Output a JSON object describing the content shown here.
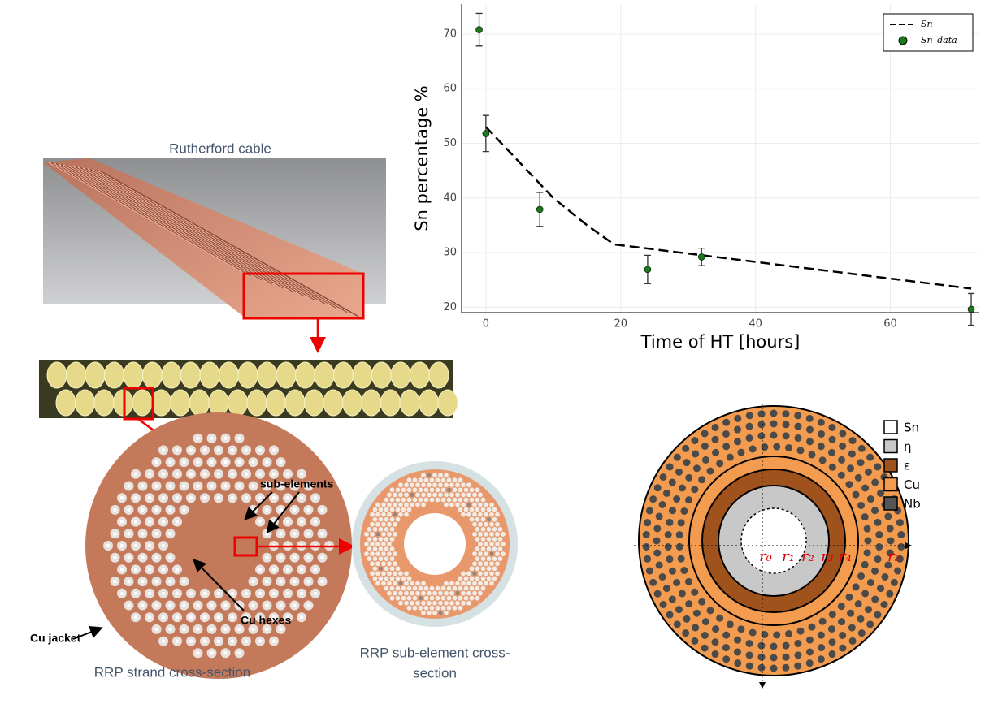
{
  "chart_data": {
    "type": "scatter-line",
    "x_label": "Time of HT [hours]",
    "y_label": "Sn percentage %",
    "xlim": [
      -3.6,
      73.2
    ],
    "ylim": [
      19,
      75.5
    ],
    "xticks": [
      0,
      20,
      40,
      60
    ],
    "yticks": [
      20,
      30,
      40,
      50,
      60,
      70
    ],
    "grid": true,
    "legend": "upper right",
    "series": [
      {
        "name": "Sn",
        "color": "#000000",
        "style": "dashed",
        "x": [
          0,
          5,
          10,
          15,
          19,
          72
        ],
        "values": [
          53,
          46.5,
          40,
          35,
          31.5,
          23.4
        ]
      },
      {
        "name": "Sn_data",
        "color": "#1a7a1a",
        "style": "points",
        "x": [
          -1,
          0,
          8,
          24,
          32,
          72
        ],
        "values": [
          70.8,
          51.8,
          37.9,
          26.9,
          29.2,
          19.6
        ],
        "errors": [
          3,
          3.3,
          3.1,
          2.6,
          1.6,
          2.9
        ]
      }
    ]
  },
  "figure": {
    "cable_title": "Rutherford cable",
    "sub_elements": "sub-elements",
    "cu_jacket": "Cu jacket",
    "cu_hexes": "Cu hexes",
    "strand_caption": "RRP strand cross-section",
    "subelement_caption": [
      "RRP sub-element cross-",
      "section"
    ],
    "legend": [
      "Sn",
      "η",
      "ε",
      "Cu",
      "Nb"
    ],
    "radii": [
      "r₀",
      "r₁",
      "r₂",
      "r₃",
      "r₄",
      "r₅"
    ]
  }
}
